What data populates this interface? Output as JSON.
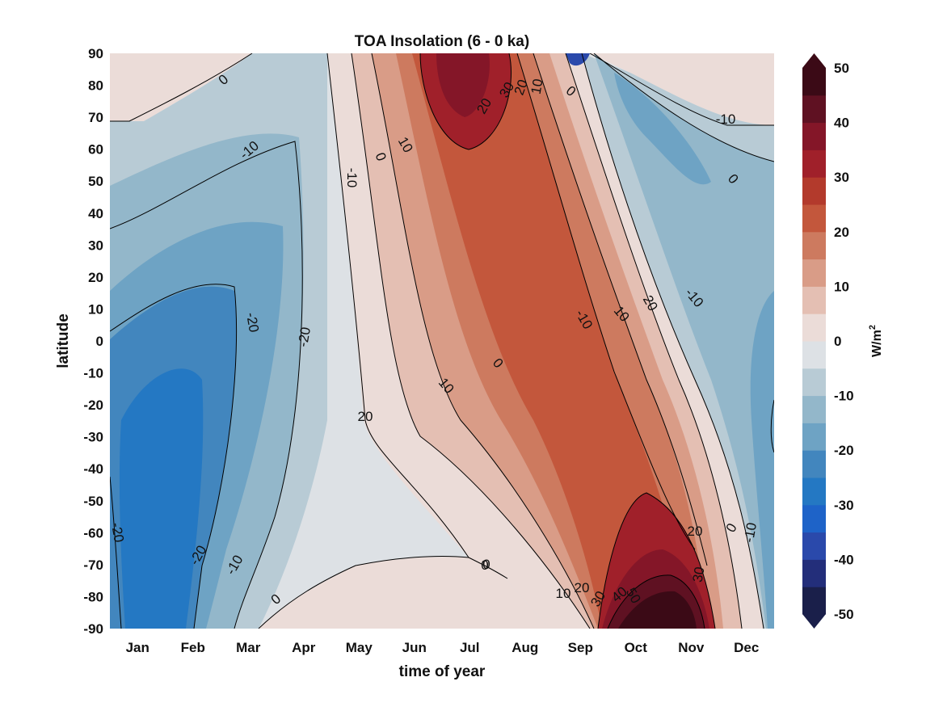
{
  "chart_data": {
    "type": "heatmap",
    "title": "TOA Insolation (6 - 0 ka)",
    "xlabel": "time of year",
    "ylabel": "latitude",
    "colorbar_label": "W/m",
    "colorbar_label_superscript": "2",
    "x_categories": [
      "Jan",
      "Feb",
      "Mar",
      "Apr",
      "May",
      "Jun",
      "Jul",
      "Aug",
      "Sep",
      "Oct",
      "Nov",
      "Dec"
    ],
    "y_ticks": [
      90,
      80,
      70,
      60,
      50,
      40,
      30,
      20,
      10,
      0,
      -10,
      -20,
      -30,
      -40,
      -50,
      -60,
      -70,
      -80,
      -90
    ],
    "ylim": [
      -90,
      90
    ],
    "colorbar_ticks": [
      50,
      40,
      30,
      20,
      10,
      0,
      -10,
      -20,
      -30,
      -40,
      -50
    ],
    "colorbar_range": [
      -50,
      50
    ],
    "contour_levels": [
      -50,
      -40,
      -30,
      -20,
      -10,
      0,
      10,
      20,
      30,
      40,
      50
    ],
    "colorbar_colors": [
      "#1a1f4a",
      "#232e7a",
      "#2a49ab",
      "#1e63c8",
      "#2478c3",
      "#4286be",
      "#6ea3c4",
      "#93b7ca",
      "#b8cbd5",
      "#dde1e5",
      "#ebdcd8",
      "#e4bfb3",
      "#d99c87",
      "#cd7a5f",
      "#c3573c",
      "#b33a2c",
      "#a0202a",
      "#841628",
      "#5f1122",
      "#3b0a16"
    ],
    "contour_labels": [
      "0",
      "-10",
      "-20",
      "-20",
      "-10",
      "0",
      "10",
      "20",
      "30",
      "20",
      "10",
      "0",
      "-10",
      "0",
      "-10",
      "-10",
      "0",
      "10",
      "20",
      "10",
      "20",
      "-20",
      "-20",
      "-10",
      "0",
      "0",
      "10",
      "20",
      "30",
      "40",
      "50",
      "20",
      "30",
      "0",
      "-10",
      "0"
    ]
  }
}
